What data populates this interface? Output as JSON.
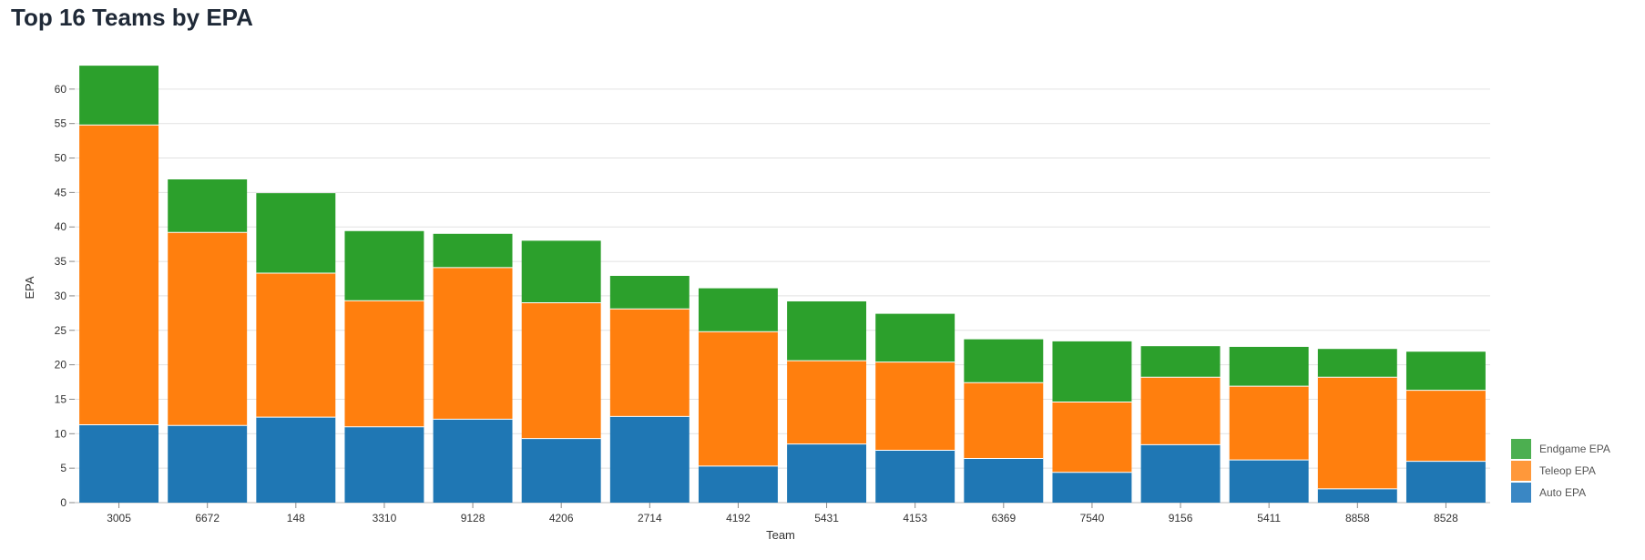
{
  "title": "Top 16 Teams by EPA",
  "chart_data": {
    "type": "bar",
    "stacked": true,
    "title": "Top 16 Teams by EPA",
    "xlabel": "Team",
    "ylabel": "EPA",
    "ylim": [
      0,
      65
    ],
    "yticks": [
      0,
      5,
      10,
      15,
      20,
      25,
      30,
      35,
      40,
      45,
      50,
      55,
      60
    ],
    "grid": true,
    "legend_position": "bottom-right",
    "categories": [
      "3005",
      "6672",
      "148",
      "3310",
      "9128",
      "4206",
      "2714",
      "4192",
      "5431",
      "4153",
      "6369",
      "7540",
      "9156",
      "5411",
      "8858",
      "8528"
    ],
    "series": [
      {
        "name": "Auto EPA",
        "color": "#1f77b4",
        "values": [
          11.3,
          11.2,
          12.4,
          11.0,
          12.1,
          9.3,
          12.5,
          5.3,
          8.5,
          7.6,
          6.4,
          4.4,
          8.4,
          6.2,
          2.0,
          6.0
        ]
      },
      {
        "name": "Teleop EPA",
        "color": "#ff7f0e",
        "values": [
          43.5,
          28.0,
          20.9,
          18.3,
          22.0,
          19.7,
          15.6,
          19.5,
          12.1,
          12.8,
          11.0,
          10.2,
          9.8,
          10.7,
          16.2,
          10.3
        ]
      },
      {
        "name": "Endgame EPA",
        "color": "#2ca02c",
        "values": [
          8.6,
          7.7,
          11.6,
          10.1,
          4.9,
          9.0,
          4.8,
          6.3,
          8.6,
          7.0,
          6.3,
          8.8,
          4.5,
          5.7,
          4.1,
          5.6
        ]
      }
    ],
    "legend": [
      {
        "label": "Endgame EPA",
        "color": "#4caf50"
      },
      {
        "label": "Teleop EPA",
        "color": "#ff983a"
      },
      {
        "label": "Auto EPA",
        "color": "#3a87c4"
      }
    ]
  }
}
